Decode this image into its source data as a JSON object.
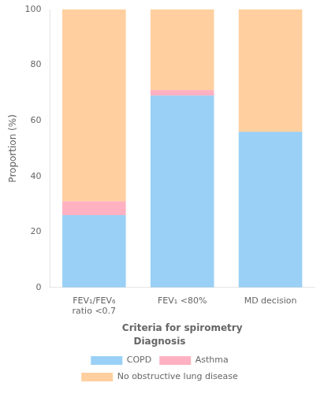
{
  "chart_data": {
    "type": "bar",
    "categories": [
      "FEV₁/FEV₆\nratio <0.7",
      "FEV₁ <80%",
      "MD decision"
    ],
    "series": [
      {
        "name": "COPD",
        "values": [
          26,
          69,
          56
        ]
      },
      {
        "name": "Asthma",
        "values": [
          5,
          2,
          0
        ]
      },
      {
        "name": "No obstructive lung disease",
        "values": [
          69,
          29,
          44
        ]
      }
    ],
    "xlabel": "Criteria for spirometry",
    "ylabel": "Proportion (%)",
    "ylim": [
      0,
      100
    ],
    "yticks": [
      0,
      20,
      40,
      60,
      80,
      100
    ],
    "stacked": true,
    "grid": false,
    "legend": "bottom",
    "legend_title": "Diagnosis"
  }
}
